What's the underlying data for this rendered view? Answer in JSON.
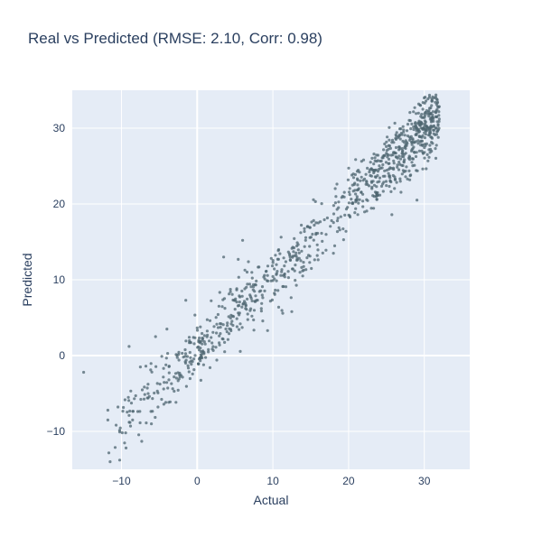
{
  "chart_data": {
    "type": "scatter",
    "title": "Real vs Predicted (RMSE: 2.10, Corr: 0.98)",
    "xlabel": "Actual",
    "ylabel": "Predicted",
    "xlim": [
      -16.5,
      36
    ],
    "ylim": [
      -15,
      35
    ],
    "xticks": [
      -10,
      0,
      10,
      20,
      30
    ],
    "yticks": [
      -10,
      0,
      10,
      20,
      30
    ],
    "xtick_labels": [
      "−10",
      "0",
      "10",
      "20",
      "30"
    ],
    "ytick_labels": [
      "−10",
      "0",
      "10",
      "20",
      "30"
    ],
    "grid": true,
    "legend": "none",
    "marker_color": "#4d6570",
    "plot_bg": "#e5ecf6",
    "sample_points": [
      {
        "x": -15.0,
        "y": -2.2
      },
      {
        "x": -11.8,
        "y": -7.2
      },
      {
        "x": -11.8,
        "y": -8.5
      },
      {
        "x": -11.5,
        "y": -14.0
      },
      {
        "x": -9.0,
        "y": 1.2
      },
      {
        "x": -8.8,
        "y": -9.3
      },
      {
        "x": -7.5,
        "y": -1.5
      },
      {
        "x": -5.5,
        "y": 2.5
      },
      {
        "x": -4.0,
        "y": 3.5
      },
      {
        "x": -1.5,
        "y": 7.3
      },
      {
        "x": 3.5,
        "y": 13.0
      },
      {
        "x": 6.0,
        "y": 15.2
      },
      {
        "x": 9.3,
        "y": 3.3
      },
      {
        "x": 12.5,
        "y": 5.8
      },
      {
        "x": 18.0,
        "y": 13.5
      },
      {
        "x": 29.5,
        "y": 33.0
      },
      {
        "x": 31.5,
        "y": 31.5
      }
    ],
    "n_points": 1000,
    "regression_slope": 0.98,
    "regression_intercept": 0.5,
    "noise_sd": 2.1
  }
}
